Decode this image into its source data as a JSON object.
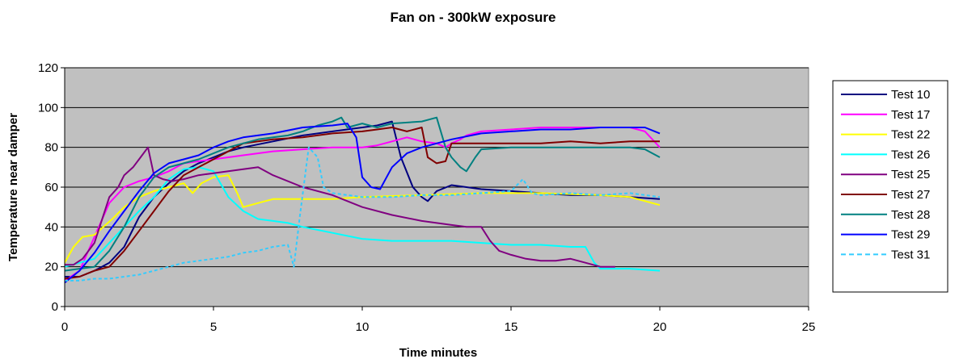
{
  "chart_data": {
    "type": "line",
    "title": "Fan on - 300kW exposure",
    "xlabel": "Time minutes",
    "ylabel": "Temperature near damper",
    "xlim": [
      0,
      25
    ],
    "ylim": [
      0,
      120
    ],
    "xticks": [
      0,
      5,
      10,
      15,
      20,
      25
    ],
    "yticks": [
      0,
      20,
      40,
      60,
      80,
      100,
      120
    ],
    "grid": "horizontal",
    "plot_background": "#c0c0c0",
    "legend_position": "right",
    "series": [
      {
        "name": "Test 10",
        "color": "#000080",
        "dash": false,
        "points": [
          [
            0,
            15
          ],
          [
            0.5,
            15
          ],
          [
            1,
            18
          ],
          [
            1.5,
            22
          ],
          [
            2,
            30
          ],
          [
            2.5,
            45
          ],
          [
            3,
            55
          ],
          [
            3.5,
            62
          ],
          [
            4,
            68
          ],
          [
            4.5,
            72
          ],
          [
            5,
            75
          ],
          [
            5.5,
            78
          ],
          [
            6,
            80
          ],
          [
            7,
            83
          ],
          [
            8,
            86
          ],
          [
            9,
            88
          ],
          [
            10,
            90
          ],
          [
            10.5,
            91
          ],
          [
            11,
            93
          ],
          [
            11.3,
            75
          ],
          [
            11.7,
            60
          ],
          [
            12,
            55
          ],
          [
            12.2,
            53
          ],
          [
            12.5,
            58
          ],
          [
            13,
            61
          ],
          [
            14,
            59
          ],
          [
            15,
            58
          ],
          [
            16,
            57
          ],
          [
            17,
            56
          ],
          [
            18,
            56
          ],
          [
            19,
            55
          ],
          [
            20,
            54
          ]
        ]
      },
      {
        "name": "Test 17",
        "color": "#ff00ff",
        "dash": false,
        "points": [
          [
            0,
            13
          ],
          [
            0.5,
            18
          ],
          [
            1,
            35
          ],
          [
            1.5,
            52
          ],
          [
            2,
            60
          ],
          [
            2.5,
            63
          ],
          [
            3,
            65
          ],
          [
            3.5,
            68
          ],
          [
            4,
            72
          ],
          [
            4.5,
            73
          ],
          [
            5,
            74
          ],
          [
            5.5,
            75
          ],
          [
            6,
            76
          ],
          [
            7,
            78
          ],
          [
            8,
            79
          ],
          [
            9,
            80
          ],
          [
            10,
            80
          ],
          [
            10.5,
            81
          ],
          [
            11,
            83
          ],
          [
            11.5,
            85
          ],
          [
            12,
            83
          ],
          [
            12.5,
            82
          ],
          [
            12.8,
            80
          ],
          [
            13,
            82
          ],
          [
            13.3,
            84
          ],
          [
            13.5,
            86
          ],
          [
            14,
            88
          ],
          [
            15,
            89
          ],
          [
            16,
            90
          ],
          [
            17,
            90
          ],
          [
            18,
            90
          ],
          [
            19,
            90
          ],
          [
            19.5,
            88
          ],
          [
            20,
            80
          ]
        ]
      },
      {
        "name": "Test 22",
        "color": "#ffff00",
        "dash": false,
        "points": [
          [
            0,
            22
          ],
          [
            0.3,
            30
          ],
          [
            0.6,
            35
          ],
          [
            1,
            36
          ],
          [
            1.3,
            40
          ],
          [
            1.6,
            44
          ],
          [
            2,
            50
          ],
          [
            2.5,
            55
          ],
          [
            3,
            58
          ],
          [
            3.5,
            60
          ],
          [
            4,
            62
          ],
          [
            4.3,
            57
          ],
          [
            4.6,
            62
          ],
          [
            5,
            65
          ],
          [
            5.5,
            66
          ],
          [
            5.8,
            57
          ],
          [
            6,
            50
          ],
          [
            6.5,
            52
          ],
          [
            7,
            54
          ],
          [
            8,
            54
          ],
          [
            9,
            54
          ],
          [
            10,
            55
          ],
          [
            12,
            56
          ],
          [
            14,
            57
          ],
          [
            16,
            57
          ],
          [
            18,
            56
          ],
          [
            19,
            55
          ],
          [
            20,
            51
          ]
        ]
      },
      {
        "name": "Test 26",
        "color": "#00ffff",
        "dash": false,
        "points": [
          [
            0,
            20
          ],
          [
            0.5,
            22
          ],
          [
            1,
            24
          ],
          [
            1.5,
            32
          ],
          [
            2,
            40
          ],
          [
            2.5,
            48
          ],
          [
            3,
            55
          ],
          [
            3.5,
            64
          ],
          [
            4,
            69
          ],
          [
            4.5,
            70
          ],
          [
            5,
            68
          ],
          [
            5.5,
            55
          ],
          [
            6,
            48
          ],
          [
            6.5,
            44
          ],
          [
            7,
            43
          ],
          [
            7.5,
            42
          ],
          [
            8,
            40
          ],
          [
            9,
            37
          ],
          [
            10,
            34
          ],
          [
            11,
            33
          ],
          [
            12,
            33
          ],
          [
            13,
            33
          ],
          [
            14,
            32
          ],
          [
            15,
            31
          ],
          [
            16,
            31
          ],
          [
            17,
            30
          ],
          [
            17.5,
            30
          ],
          [
            17.8,
            22
          ],
          [
            18,
            19
          ],
          [
            19,
            19
          ],
          [
            20,
            18
          ]
        ]
      },
      {
        "name": "Test 25",
        "color": "#800080",
        "dash": false,
        "points": [
          [
            0,
            21
          ],
          [
            0.3,
            21
          ],
          [
            0.6,
            24
          ],
          [
            1,
            32
          ],
          [
            1.5,
            55
          ],
          [
            1.8,
            60
          ],
          [
            2,
            66
          ],
          [
            2.3,
            70
          ],
          [
            2.6,
            76
          ],
          [
            2.8,
            80
          ],
          [
            3,
            66
          ],
          [
            3.3,
            64
          ],
          [
            3.6,
            63
          ],
          [
            4,
            64
          ],
          [
            4.5,
            66
          ],
          [
            5,
            67
          ],
          [
            5.5,
            68
          ],
          [
            6,
            69
          ],
          [
            6.5,
            70
          ],
          [
            7,
            66
          ],
          [
            8,
            60
          ],
          [
            9,
            56
          ],
          [
            10,
            50
          ],
          [
            11,
            46
          ],
          [
            12,
            43
          ],
          [
            13,
            41
          ],
          [
            13.5,
            40
          ],
          [
            14,
            40
          ],
          [
            14.3,
            33
          ],
          [
            14.6,
            28
          ],
          [
            15,
            26
          ],
          [
            15.5,
            24
          ],
          [
            16,
            23
          ],
          [
            16.5,
            23
          ],
          [
            17,
            24
          ],
          [
            17.5,
            22
          ],
          [
            18,
            20
          ],
          [
            18.5,
            20
          ]
        ]
      },
      {
        "name": "Test 27",
        "color": "#800000",
        "dash": false,
        "points": [
          [
            0,
            14
          ],
          [
            0.5,
            15
          ],
          [
            1,
            18
          ],
          [
            1.5,
            20
          ],
          [
            2,
            28
          ],
          [
            2.5,
            38
          ],
          [
            3,
            48
          ],
          [
            3.5,
            58
          ],
          [
            4,
            66
          ],
          [
            4.5,
            70
          ],
          [
            5,
            74
          ],
          [
            5.5,
            78
          ],
          [
            6,
            82
          ],
          [
            7,
            84
          ],
          [
            8,
            85
          ],
          [
            9,
            87
          ],
          [
            10,
            88
          ],
          [
            10.5,
            89
          ],
          [
            11,
            90
          ],
          [
            11.5,
            88
          ],
          [
            12,
            90
          ],
          [
            12.2,
            75
          ],
          [
            12.5,
            72
          ],
          [
            12.8,
            73
          ],
          [
            13,
            82
          ],
          [
            14,
            82
          ],
          [
            15,
            82
          ],
          [
            16,
            82
          ],
          [
            17,
            83
          ],
          [
            18,
            82
          ],
          [
            19,
            83
          ],
          [
            20,
            83
          ]
        ]
      },
      {
        "name": "Test 28",
        "color": "#008080",
        "dash": false,
        "points": [
          [
            0,
            18
          ],
          [
            0.5,
            19
          ],
          [
            1,
            20
          ],
          [
            1.5,
            28
          ],
          [
            2,
            40
          ],
          [
            2.5,
            55
          ],
          [
            3,
            65
          ],
          [
            3.5,
            70
          ],
          [
            4,
            72
          ],
          [
            4.5,
            74
          ],
          [
            5,
            77
          ],
          [
            5.5,
            80
          ],
          [
            6,
            82
          ],
          [
            6.5,
            84
          ],
          [
            7,
            85
          ],
          [
            7.5,
            86
          ],
          [
            8,
            88
          ],
          [
            8.5,
            91
          ],
          [
            9,
            93
          ],
          [
            9.3,
            95
          ],
          [
            9.5,
            90
          ],
          [
            10,
            92
          ],
          [
            10.5,
            90
          ],
          [
            11,
            92
          ],
          [
            12,
            93
          ],
          [
            12.5,
            95
          ],
          [
            12.8,
            80
          ],
          [
            13,
            75
          ],
          [
            13.3,
            70
          ],
          [
            13.5,
            68
          ],
          [
            13.8,
            75
          ],
          [
            14,
            79
          ],
          [
            15,
            80
          ],
          [
            16,
            80
          ],
          [
            17,
            80
          ],
          [
            18,
            80
          ],
          [
            19,
            80
          ],
          [
            19.5,
            79
          ],
          [
            20,
            75
          ]
        ]
      },
      {
        "name": "Test 29",
        "color": "#0000ff",
        "dash": false,
        "points": [
          [
            0,
            12
          ],
          [
            0.5,
            18
          ],
          [
            1,
            27
          ],
          [
            1.5,
            38
          ],
          [
            2,
            48
          ],
          [
            2.5,
            58
          ],
          [
            3,
            67
          ],
          [
            3.5,
            72
          ],
          [
            4,
            74
          ],
          [
            4.5,
            76
          ],
          [
            5,
            80
          ],
          [
            5.5,
            83
          ],
          [
            6,
            85
          ],
          [
            7,
            87
          ],
          [
            8,
            90
          ],
          [
            9,
            91
          ],
          [
            9.5,
            92
          ],
          [
            9.8,
            85
          ],
          [
            10,
            65
          ],
          [
            10.3,
            60
          ],
          [
            10.6,
            59
          ],
          [
            11,
            70
          ],
          [
            11.5,
            77
          ],
          [
            12,
            80
          ],
          [
            13,
            84
          ],
          [
            14,
            87
          ],
          [
            15,
            88
          ],
          [
            16,
            89
          ],
          [
            17,
            89
          ],
          [
            18,
            90
          ],
          [
            19,
            90
          ],
          [
            19.5,
            90
          ],
          [
            20,
            87
          ]
        ]
      },
      {
        "name": "Test 31",
        "color": "#33ccff",
        "dash": true,
        "points": [
          [
            0,
            13
          ],
          [
            0.5,
            13
          ],
          [
            1,
            14
          ],
          [
            1.5,
            14
          ],
          [
            2,
            15
          ],
          [
            2.5,
            16
          ],
          [
            3,
            18
          ],
          [
            3.5,
            20
          ],
          [
            4,
            22
          ],
          [
            4.5,
            23
          ],
          [
            5,
            24
          ],
          [
            5.5,
            25
          ],
          [
            6,
            27
          ],
          [
            6.5,
            28
          ],
          [
            7,
            30
          ],
          [
            7.5,
            31
          ],
          [
            7.7,
            20
          ],
          [
            7.9,
            45
          ],
          [
            8.2,
            80
          ],
          [
            8.5,
            75
          ],
          [
            8.7,
            60
          ],
          [
            9,
            57
          ],
          [
            10,
            55
          ],
          [
            11,
            55
          ],
          [
            12,
            56
          ],
          [
            13,
            56
          ],
          [
            14,
            57
          ],
          [
            15,
            58
          ],
          [
            15.4,
            64
          ],
          [
            15.7,
            57
          ],
          [
            16,
            56
          ],
          [
            17,
            57
          ],
          [
            18,
            56
          ],
          [
            19,
            57
          ],
          [
            20,
            55
          ]
        ]
      }
    ]
  }
}
